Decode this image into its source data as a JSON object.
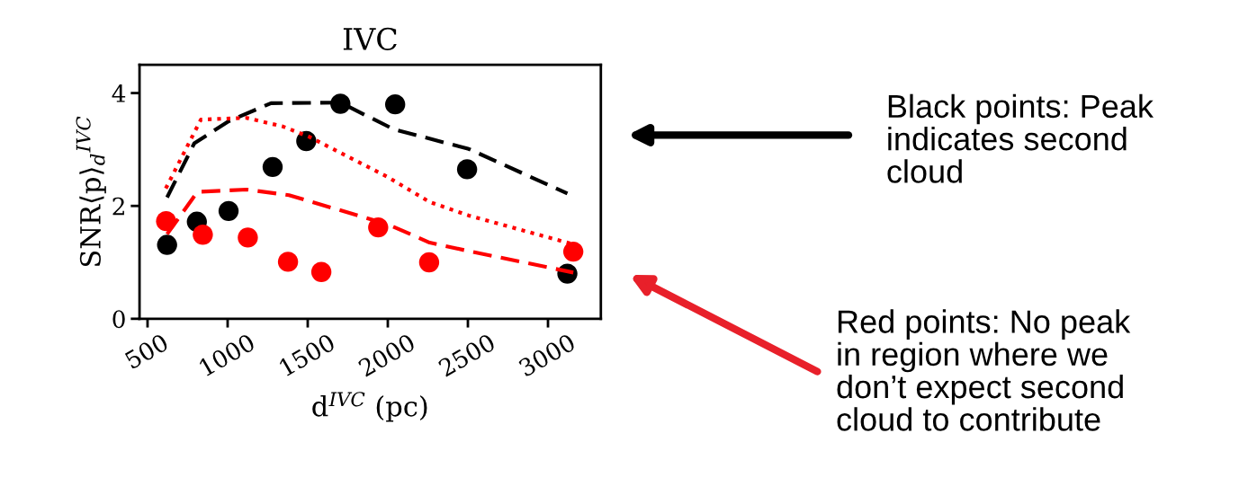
{
  "chart_data": {
    "type": "scatter",
    "title": "IVC",
    "xlabel": "d$^{IVC}$ (pc)",
    "ylabel": "SNR⟨p⟩$_{d}$$^{IVC}$",
    "xlim": [
      450,
      3330
    ],
    "xticks": [
      500,
      1000,
      1500,
      2000,
      2500,
      3000
    ],
    "ylim": [
      0,
      4.5
    ],
    "yticks": [
      0,
      2,
      4
    ],
    "grid": false,
    "legend": false,
    "series": [
      {
        "type": "line",
        "color": "#000000",
        "line_style": "dashed",
        "marker": "none",
        "x": [
          622,
          792,
          1006,
          1271,
          1704,
          2036,
          2505,
          3121
        ],
        "values": [
          2.15,
          3.11,
          3.5,
          3.82,
          3.83,
          3.36,
          3.01,
          2.22
        ]
      },
      {
        "type": "line",
        "color": "#ff0000",
        "line_style": "dotted",
        "marker": "none",
        "x": [
          614,
          833,
          1118,
          1342,
          1506,
          1995,
          2261,
          2505,
          3158
        ],
        "values": [
          2.31,
          3.53,
          3.56,
          3.41,
          3.23,
          2.52,
          2.07,
          1.83,
          1.32
        ]
      },
      {
        "type": "line",
        "color": "#ff0000",
        "line_style": "dashed",
        "marker": "none",
        "x": [
          622,
          812,
          1118,
          1383,
          1995,
          2261,
          2505,
          3158
        ],
        "values": [
          1.5,
          2.25,
          2.29,
          2.19,
          1.68,
          1.35,
          1.2,
          0.82
        ]
      },
      {
        "color": "#000000",
        "marker": "circle",
        "x": [
          622,
          808,
          1006,
          1281,
          1491,
          1704,
          2046,
          2495,
          3121
        ],
        "values": [
          1.31,
          1.72,
          1.91,
          2.69,
          3.15,
          3.81,
          3.8,
          2.65,
          0.8
        ]
      },
      {
        "color": "#ff0000",
        "marker": "circle",
        "x": [
          616,
          845,
          1126,
          1377,
          1585,
          1940,
          2258,
          3158
        ],
        "values": [
          1.73,
          1.49,
          1.44,
          1.01,
          0.83,
          1.62,
          1.0,
          1.19
        ]
      }
    ],
    "annotations": [
      "Black points: Peak\nindicates second\ncloud",
      "Red points: No peak\nin region where we\ndon’t expect second\ncloud to contribute"
    ]
  }
}
